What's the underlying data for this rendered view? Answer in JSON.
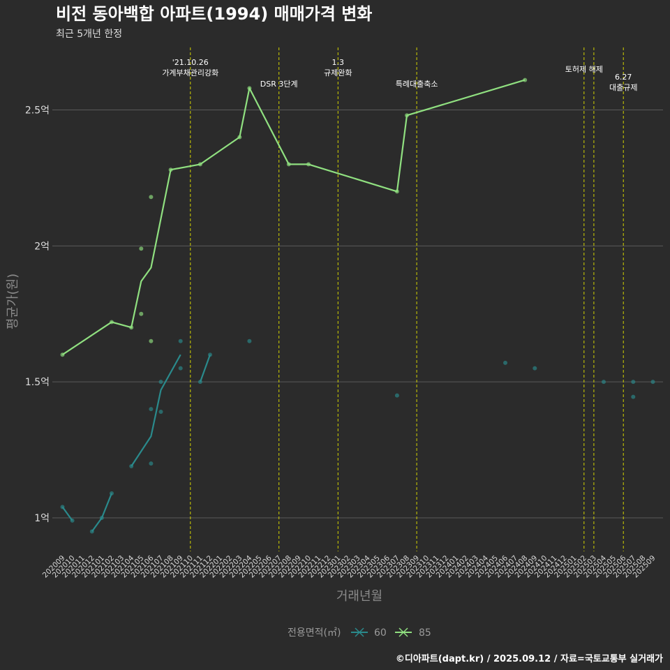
{
  "chart_data": {
    "type": "line",
    "title": "비전 동아백합 아파트(1994) 매매가격 변화",
    "subtitle": "최근 5개년 한정",
    "xlabel": "거래년월",
    "ylabel": "평균가(원)",
    "caption": "©디아파트(dapt.kr) / 2025.09.12 / 자료=국토교통부 실거래가",
    "categories": [
      "202009",
      "202010",
      "202011",
      "202012",
      "202101",
      "202102",
      "202103",
      "202104",
      "202105",
      "202106",
      "202107",
      "202108",
      "202109",
      "202110",
      "202111",
      "202112",
      "202201",
      "202202",
      "202203",
      "202204",
      "202205",
      "202206",
      "202207",
      "202208",
      "202209",
      "202210",
      "202211",
      "202212",
      "202301",
      "202302",
      "202303",
      "202304",
      "202305",
      "202306",
      "202307",
      "202308",
      "202309",
      "202310",
      "202311",
      "202312",
      "202401",
      "202402",
      "202403",
      "202404",
      "202405",
      "202406",
      "202407",
      "202408",
      "202409",
      "202410",
      "202411",
      "202412",
      "202501",
      "202502",
      "202503",
      "202504",
      "202505",
      "202506",
      "202507",
      "202508",
      "202509"
    ],
    "yticks": [
      {
        "value": 1.0,
        "label": "1억"
      },
      {
        "value": 1.5,
        "label": "1.5억"
      },
      {
        "value": 2.0,
        "label": "2억"
      },
      {
        "value": 2.5,
        "label": "2.5억"
      }
    ],
    "ylim": [
      0.88,
      2.73
    ],
    "legend": {
      "title": "전용면적(㎡)",
      "position": "bottom"
    },
    "series": [
      {
        "name": "60",
        "color": "#2a8a8c",
        "line": [
          [
            [
              0,
              1.04
            ],
            [
              1,
              0.99
            ]
          ],
          [
            [
              3,
              0.95
            ],
            [
              4,
              1.0
            ],
            [
              5,
              1.09
            ]
          ],
          [
            [
              7,
              1.19
            ],
            [
              9,
              1.3
            ],
            [
              10,
              1.47
            ],
            [
              12,
              1.6
            ]
          ],
          [
            [
              14,
              1.5
            ],
            [
              15,
              1.6
            ]
          ]
        ],
        "points": [
          [
            0,
            1.04
          ],
          [
            1,
            0.99
          ],
          [
            3,
            0.95
          ],
          [
            4,
            1.0
          ],
          [
            5,
            1.09
          ],
          [
            7,
            1.19
          ],
          [
            9,
            1.2
          ],
          [
            9,
            1.4
          ],
          [
            10,
            1.39
          ],
          [
            10,
            1.5
          ],
          [
            12,
            1.55
          ],
          [
            12,
            1.65
          ],
          [
            14,
            1.5
          ],
          [
            15,
            1.6
          ],
          [
            19,
            1.65
          ],
          [
            34,
            1.45
          ],
          [
            45,
            1.57
          ],
          [
            48,
            1.55
          ],
          [
            55,
            1.5
          ],
          [
            58,
            1.5
          ],
          [
            58,
            1.445
          ],
          [
            60,
            1.5
          ]
        ]
      },
      {
        "name": "85",
        "color": "#90e080",
        "line": [
          [
            [
              0,
              1.6
            ],
            [
              5,
              1.72
            ],
            [
              7,
              1.7
            ],
            [
              8,
              1.87
            ],
            [
              9,
              1.92
            ],
            [
              11,
              2.28
            ],
            [
              14,
              2.3
            ],
            [
              18,
              2.4
            ],
            [
              19,
              2.58
            ],
            [
              23,
              2.3
            ],
            [
              25,
              2.3
            ],
            [
              34,
              2.2
            ],
            [
              35,
              2.48
            ],
            [
              47,
              2.61
            ]
          ]
        ],
        "points": [
          [
            0,
            1.6
          ],
          [
            5,
            1.72
          ],
          [
            7,
            1.7
          ],
          [
            8,
            1.99
          ],
          [
            8,
            1.75
          ],
          [
            9,
            2.18
          ],
          [
            9,
            1.65
          ],
          [
            11,
            2.28
          ],
          [
            14,
            2.3
          ],
          [
            18,
            2.4
          ],
          [
            19,
            2.58
          ],
          [
            23,
            2.3
          ],
          [
            25,
            2.3
          ],
          [
            34,
            2.2
          ],
          [
            35,
            2.48
          ],
          [
            47,
            2.61
          ]
        ]
      }
    ],
    "annotations": [
      {
        "index": 13,
        "lines": [
          "'21.10.26",
          "가계부채관리강화"
        ],
        "row": "top"
      },
      {
        "index": 22,
        "lines": [
          "DSR 3단계"
        ],
        "row": "low"
      },
      {
        "index": 28,
        "lines": [
          "1.3",
          "규제완화"
        ],
        "row": "top"
      },
      {
        "index": 36,
        "lines": [
          "특례대출축소"
        ],
        "row": "low"
      },
      {
        "index": 53,
        "lines": [
          "토허제 해제"
        ],
        "row": "mid"
      },
      {
        "index": 54,
        "lines": [],
        "row": "mid"
      },
      {
        "index": 57,
        "lines": [
          "6.27",
          "대출규제"
        ],
        "row": "lowmid"
      }
    ]
  }
}
